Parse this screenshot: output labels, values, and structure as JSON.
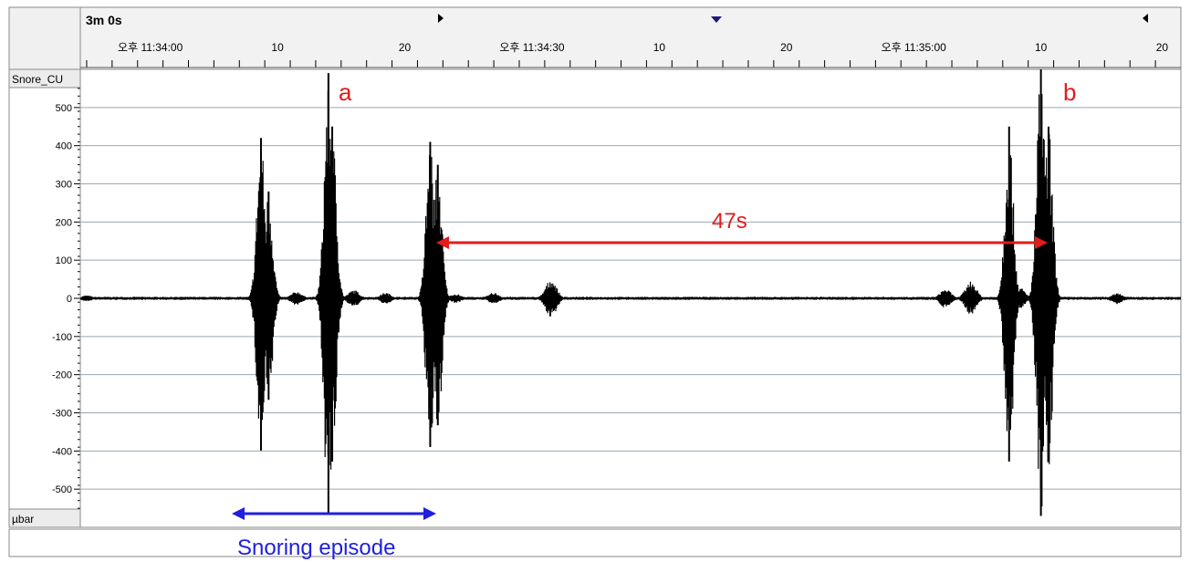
{
  "header": {
    "duration": "3m 0s",
    "major_ticks": [
      {
        "t": 0,
        "label": "오후 11:34:00"
      },
      {
        "t": 10,
        "label": "10"
      },
      {
        "t": 20,
        "label": "20"
      },
      {
        "t": 30,
        "label": "오후 11:34:30"
      },
      {
        "t": 40,
        "label": "10"
      },
      {
        "t": 50,
        "label": "20"
      },
      {
        "t": 60,
        "label": "오후 11:35:00"
      },
      {
        "t": 70,
        "label": "10"
      },
      {
        "t": 80,
        "label": "20"
      }
    ]
  },
  "channel": {
    "name": "Snore_CU",
    "unit": "µbar"
  },
  "annotations": {
    "a": "a",
    "b": "b",
    "interval": "47s",
    "episode": "Snoring episode"
  },
  "colors": {
    "signal": "#000000",
    "annotation_red": "#e31b1b",
    "annotation_blue": "#1f1fe0",
    "grid": "#9aa8b3",
    "header_bg": "#f2f2f2",
    "marker_blue": "#1a1a7a"
  },
  "chart_data": {
    "type": "line",
    "xlabel": "",
    "ylabel": "µbar",
    "x_unit": "seconds after 오후 11:34:00",
    "xlim": [
      -5.5,
      81
    ],
    "ylim": [
      -600,
      600
    ],
    "yticks": [
      500,
      400,
      300,
      200,
      100,
      0,
      -100,
      -200,
      -300,
      -400,
      -500
    ],
    "grid": true,
    "series": [
      {
        "bursts": [
          {
            "t": -5.0,
            "amp": 8
          },
          {
            "t": 8.7,
            "amp": 420
          },
          {
            "t": 9.3,
            "amp": 280
          },
          {
            "t": 11.5,
            "amp": 18
          },
          {
            "t": 14.0,
            "amp": 590
          },
          {
            "t": 14.3,
            "amp": 450
          },
          {
            "t": 16.0,
            "amp": 22
          },
          {
            "t": 18.5,
            "amp": 15
          },
          {
            "t": 22.0,
            "amp": 410
          },
          {
            "t": 22.6,
            "amp": 350
          },
          {
            "t": 24.0,
            "amp": 12
          },
          {
            "t": 27.0,
            "amp": 15
          },
          {
            "t": 31.5,
            "amp": 50
          },
          {
            "t": 62.5,
            "amp": 25
          },
          {
            "t": 64.5,
            "amp": 45
          },
          {
            "t": 67.5,
            "amp": 450
          },
          {
            "t": 68.3,
            "amp": 30
          },
          {
            "t": 70.0,
            "amp": 600
          },
          {
            "t": 70.6,
            "amp": 450
          },
          {
            "t": 76.0,
            "amp": 15
          }
        ]
      }
    ]
  }
}
